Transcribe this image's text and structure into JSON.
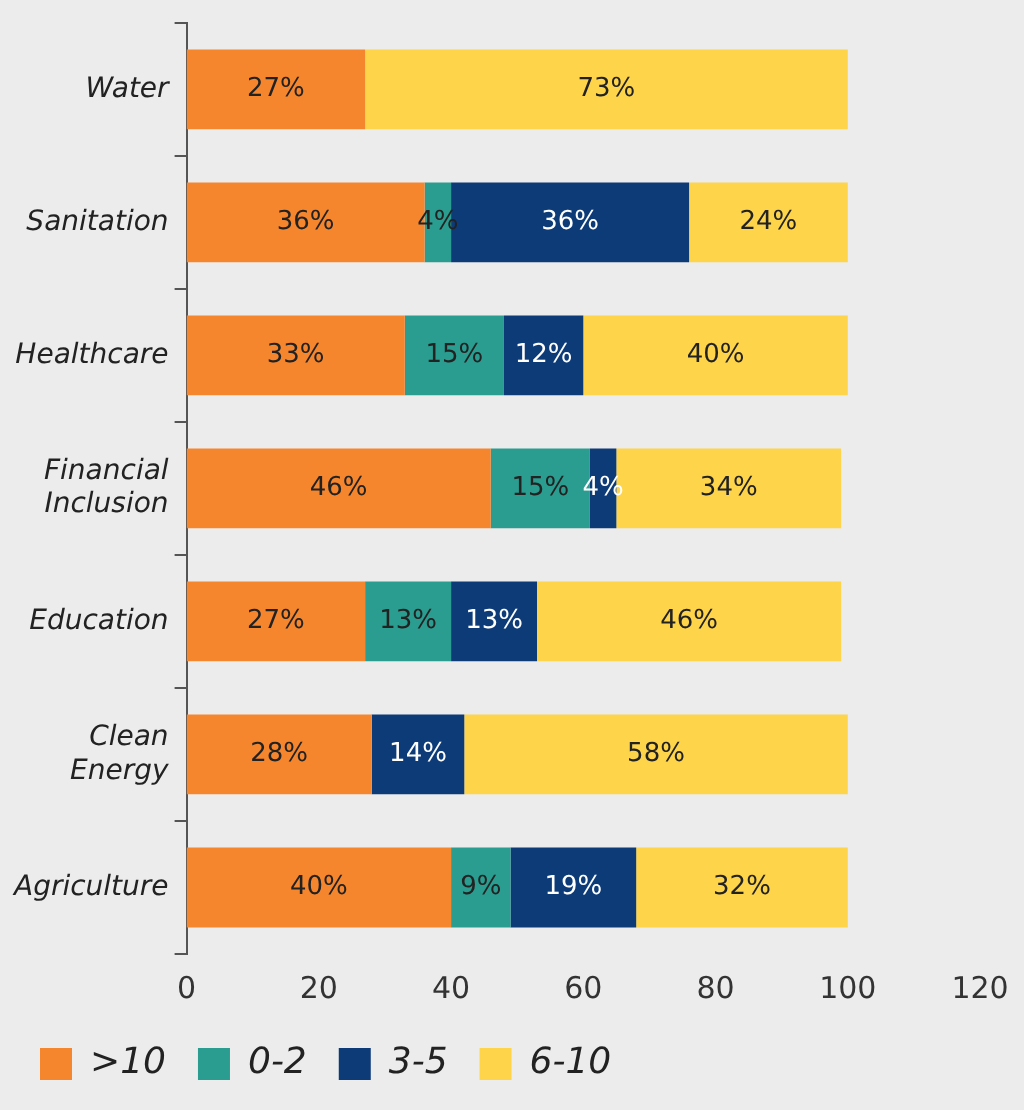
{
  "chart_data": {
    "type": "bar",
    "orientation": "horizontal",
    "stacked": true,
    "categories": [
      "Water",
      "Sanitation",
      "Healthcare",
      "Financial\nInclusion",
      "Education",
      "Clean\nEnergy",
      "Agriculture"
    ],
    "series": [
      {
        "name": ">10",
        "color": "#f5862e",
        "values": [
          27,
          36,
          33,
          46,
          27,
          28,
          40
        ],
        "value_labels": [
          "27%",
          "36%",
          "33%",
          "46%",
          "27%",
          "28%",
          "40%"
        ]
      },
      {
        "name": "0-2",
        "color": "#2a9d90",
        "values": [
          null,
          4,
          15,
          15,
          13,
          null,
          9
        ],
        "value_labels": [
          null,
          "4%",
          "15%",
          "15%",
          "13%",
          null,
          "9%"
        ]
      },
      {
        "name": "3-5",
        "color": "#0c3b78",
        "values": [
          null,
          36,
          12,
          4,
          13,
          14,
          19
        ],
        "value_labels": [
          null,
          "36%",
          "12%",
          "4%",
          "13%",
          "14%",
          "19%"
        ]
      },
      {
        "name": "6-10",
        "color": "#fed44a",
        "values": [
          73,
          24,
          40,
          34,
          46,
          58,
          32
        ],
        "value_labels": [
          "73%",
          "24%",
          "40%",
          "34%",
          "46%",
          "58%",
          "32%"
        ]
      }
    ],
    "xlim": [
      0,
      120
    ],
    "xticks": [
      0,
      20,
      40,
      60,
      80,
      100,
      120
    ],
    "grid": false,
    "legend": "bottom left"
  }
}
